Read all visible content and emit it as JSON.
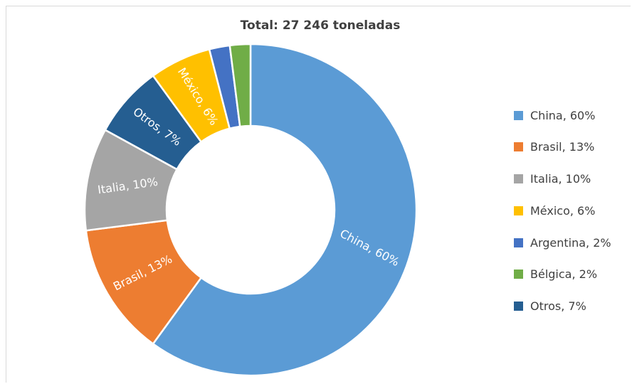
{
  "chart_data": {
    "type": "pie",
    "donut": true,
    "title": "Total: 27 246 toneladas",
    "legend_position": "right",
    "slices": [
      {
        "name": "China",
        "value": 60,
        "label": "China, 60%",
        "color": "#5b9bd5"
      },
      {
        "name": "Brasil",
        "value": 13,
        "label": "Brasil, 13%",
        "color": "#ed7d31"
      },
      {
        "name": "Italia",
        "value": 10,
        "label": "Italia, 10%",
        "color": "#a5a5a5"
      },
      {
        "name": "México",
        "value": 6,
        "label": "México, 6%",
        "color": "#ffc000"
      },
      {
        "name": "Argentina",
        "value": 2,
        "label": "Argentina, 2%",
        "color": "#4472c4"
      },
      {
        "name": "Bélgica",
        "value": 2,
        "label": "Bélgica, 2%",
        "color": "#70ad47"
      },
      {
        "name": "Otros",
        "value": 7,
        "label": "Otros, 7%",
        "color": "#255e91"
      }
    ]
  }
}
